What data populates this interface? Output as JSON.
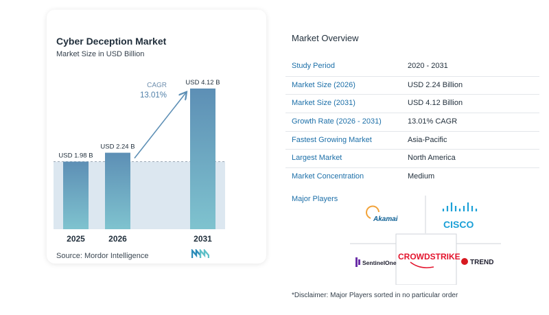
{
  "chart": {
    "title": "Cyber Deception Market",
    "subtitle": "Market Size in USD Billion",
    "source": "Source:  Mordor Intelligence",
    "cagr_label": "CAGR",
    "cagr_value": "13.01%"
  },
  "chart_data": {
    "type": "bar",
    "title": "Cyber Deception Market",
    "subtitle": "Market Size in USD Billion",
    "categories": [
      "2025",
      "2026",
      "2031"
    ],
    "values": [
      1.98,
      2.24,
      4.12
    ],
    "value_labels": [
      "USD 1.98 B",
      "USD 2.24 B",
      "USD 4.12 B"
    ],
    "ylim": [
      0,
      4.12
    ],
    "annotation": {
      "text": "CAGR",
      "value": "13.01%"
    },
    "colors": {
      "bar_top": "#5d8fb5",
      "bar_bottom": "#7fc3cf",
      "band": "#dce7f0",
      "arrow": "#5d8fb5"
    }
  },
  "overview": {
    "title": "Market Overview",
    "rows": [
      {
        "label": "Study Period",
        "value": "2020 - 2031"
      },
      {
        "label": "Market Size (2026)",
        "value": "USD 2.24 Billion"
      },
      {
        "label": "Market Size (2031)",
        "value": "USD 4.12 Billion"
      },
      {
        "label": "Growth Rate (2026 - 2031)",
        "value": "13.01% CAGR"
      },
      {
        "label": "Fastest Growing Market",
        "value": "Asia-Pacific"
      },
      {
        "label": "Largest Market",
        "value": "North America"
      },
      {
        "label": "Market Concentration",
        "value": "Medium"
      }
    ]
  },
  "players": {
    "title": "Major Players",
    "logos": [
      "Akamai",
      "CISCO",
      "SentinelOne",
      "CROWDSTRIKE",
      "TREND"
    ],
    "disclaimer": "*Disclaimer: Major Players sorted in no particular order"
  }
}
